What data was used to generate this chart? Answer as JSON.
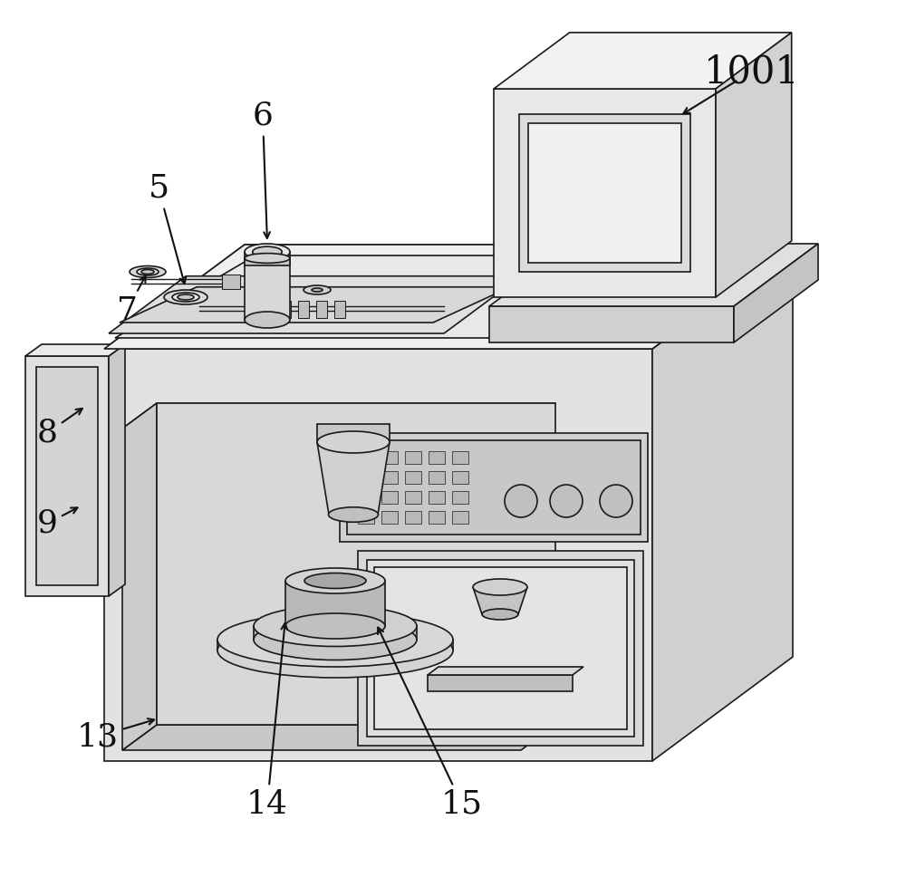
{
  "background_color": "#ffffff",
  "line_color": "#1a1a1a",
  "lw": 1.2,
  "label_fontsize": 26,
  "label_color": "#111111",
  "colors": {
    "front_face": "#e2e2e2",
    "right_face": "#d0d0d0",
    "top_face": "#efefef",
    "cavity_back": "#d8d8d8",
    "cavity_floor": "#c8c8c8",
    "cavity_ceiling": "#e8e8e8",
    "cavity_left": "#cccccc",
    "cavity_right": "#c4c4c4",
    "panel_bg": "#d4d4d4",
    "side_panel_front": "#e0e0e0",
    "side_panel_right": "#cacaca",
    "side_panel_top": "#ebebeb",
    "monitor_front": "#e8e8e8",
    "monitor_top": "#f2f2f2",
    "monitor_right": "#d2d2d2",
    "monitor_screen": "#e8e8e8",
    "monitor_base_front": "#d0d0d0",
    "monitor_base_top": "#e0e0e0",
    "monitor_base_right": "#c4c4c4",
    "shelf_front": "#d8d8d8",
    "shelf_top": "#e8e8e8",
    "shelf_right": "#c8c8c8",
    "obj_body": "#d0d0d0",
    "obj_top": "#e0e0e0",
    "stage_large": "#d4d4d4",
    "stage_mid": "#c8c8c8",
    "stage_small": "#bcbcbc",
    "stage_inner": "#adadad",
    "right_box_bg": "#d8d8d8",
    "right_box_inner": "#e4e4e4",
    "right_tray": "#c8c8c8",
    "ctrl_panel": "#d0d0d0"
  }
}
